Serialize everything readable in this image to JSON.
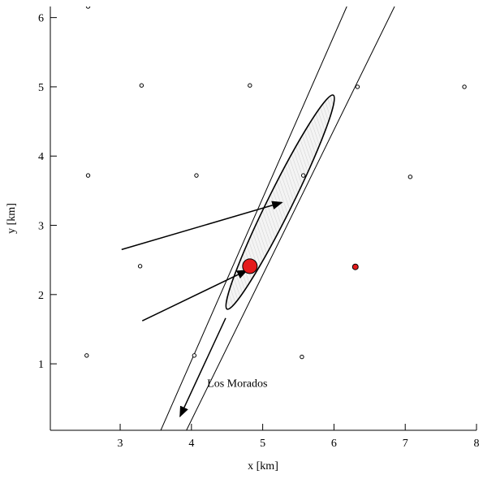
{
  "chart_data": {
    "type": "scatter",
    "xlabel": "x [km]",
    "ylabel": "y [km]",
    "xlim": [
      2.02,
      8
    ],
    "ylim": [
      0.04,
      6.16
    ],
    "xticks": [
      3,
      4,
      5,
      6,
      7,
      8
    ],
    "yticks": [
      1,
      2,
      3,
      4,
      5,
      6
    ],
    "series": [
      {
        "color": "#ffffff",
        "stroke": "#000000",
        "size": 2.2,
        "x": [
          2.55,
          3.3,
          4.82,
          6.33,
          7.83,
          2.55,
          4.07,
          5.57,
          7.07,
          3.28,
          2.53,
          4.04,
          5.55
        ],
        "y": [
          6.16,
          5.02,
          5.02,
          5.0,
          5.0,
          3.72,
          3.72,
          3.72,
          3.7,
          2.41,
          1.12,
          1.12,
          1.1
        ]
      },
      {
        "color": "#e41a1c",
        "stroke": "#000000",
        "size": 3.5,
        "x": [
          6.3
        ],
        "y": [
          2.4
        ]
      },
      {
        "color": "#e41a1c",
        "stroke": "#000000",
        "size": 9,
        "x": [
          4.82
        ],
        "y": [
          2.41
        ]
      }
    ],
    "lines": [
      {
        "x": [
          3.57,
          6.18
        ],
        "y": [
          0.04,
          6.16
        ]
      },
      {
        "x": [
          3.93,
          6.85
        ],
        "y": [
          0.04,
          6.16
        ]
      }
    ],
    "ellipse": {
      "x": [
        4.5,
        5.99
      ],
      "y": [
        1.79,
        4.88
      ],
      "width": 0.34
    },
    "arrows": [
      {
        "x": [
          3.02,
          5.27
        ],
        "y": [
          2.65,
          3.33
        ]
      },
      {
        "x": [
          3.31,
          4.78
        ],
        "y": [
          1.62,
          2.35
        ]
      },
      {
        "x": [
          4.48,
          3.84
        ],
        "y": [
          1.66,
          0.24
        ]
      }
    ],
    "annotation": {
      "text": "Los Morados",
      "x": 4.22,
      "y": 0.67
    }
  }
}
